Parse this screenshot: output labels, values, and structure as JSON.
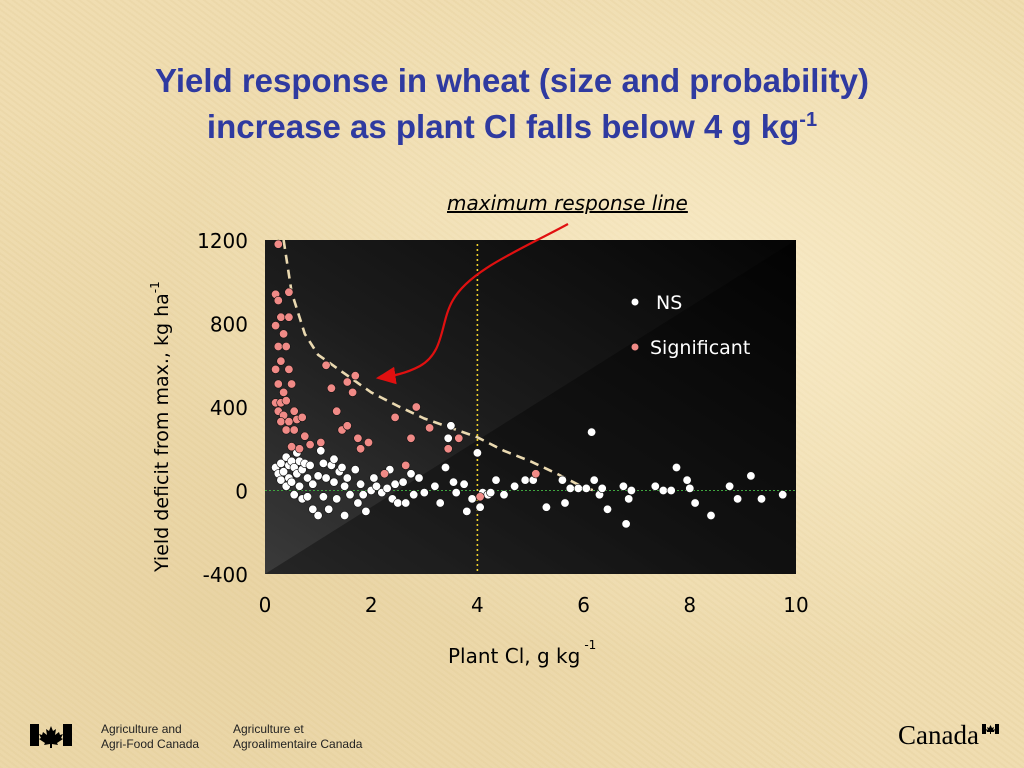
{
  "slide": {
    "title_line1": "Yield response in wheat (size and probability)",
    "title_line2": "increase as plant Cl falls below 4 g kg",
    "title_sup": "-1"
  },
  "footer": {
    "dept_en_line1": "Agriculture and",
    "dept_en_line2": "Agri-Food Canada",
    "dept_fr_line1": "Agriculture et",
    "dept_fr_line2": "Agroalimentaire Canada",
    "wordmark": "Canada"
  },
  "colors": {
    "title": "#2f3aa0",
    "plot_bg": "#1a1a1a",
    "ns_points": "#ffffff",
    "significant_points": "#f08a86",
    "threshold_line": "#f2d22a",
    "zero_line": "#3fa63f",
    "response_curve": "#ead9b0",
    "arrow": "#e01010"
  },
  "chart_data": {
    "type": "scatter",
    "xlabel": "Plant Cl, g kg",
    "xlabel_sup": "-1",
    "ylabel": "Yield deficit from max., kg ha",
    "ylabel_sup": "-1",
    "xlim": [
      0,
      10
    ],
    "ylim": [
      -400,
      1200
    ],
    "xticks": [
      "0",
      "2",
      "4",
      "6",
      "8",
      "10"
    ],
    "yticks": [
      "1200",
      "800",
      "400",
      "0",
      "-400"
    ],
    "ytick_values": [
      1200,
      800,
      400,
      0,
      -400
    ],
    "legend_position": "top-right",
    "legend": [
      {
        "label": "NS",
        "series": "ns"
      },
      {
        "label": "Significant",
        "series": "significant"
      }
    ],
    "annotation": "maximum response line",
    "threshold_x": 4,
    "zero_line_y": 0,
    "max_response_line": [
      [
        0.35,
        1200
      ],
      [
        0.5,
        950
      ],
      [
        0.75,
        750
      ],
      [
        1.0,
        650
      ],
      [
        1.5,
        560
      ],
      [
        2.0,
        470
      ],
      [
        2.5,
        405
      ],
      [
        3.0,
        345
      ],
      [
        3.5,
        300
      ],
      [
        4.0,
        255
      ],
      [
        4.5,
        190
      ],
      [
        5.0,
        140
      ],
      [
        5.5,
        80
      ],
      [
        6.0,
        15
      ],
      [
        6.2,
        0
      ]
    ],
    "series": [
      {
        "name": "NS",
        "id": "ns",
        "points": [
          [
            0.2,
            110
          ],
          [
            0.25,
            80
          ],
          [
            0.3,
            50
          ],
          [
            0.3,
            130
          ],
          [
            0.35,
            90
          ],
          [
            0.4,
            160
          ],
          [
            0.4,
            20
          ],
          [
            0.45,
            120
          ],
          [
            0.45,
            60
          ],
          [
            0.5,
            140
          ],
          [
            0.5,
            40
          ],
          [
            0.55,
            110
          ],
          [
            0.55,
            -20
          ],
          [
            0.6,
            180
          ],
          [
            0.6,
            80
          ],
          [
            0.65,
            140
          ],
          [
            0.65,
            20
          ],
          [
            0.7,
            100
          ],
          [
            0.7,
            -40
          ],
          [
            0.75,
            130
          ],
          [
            0.8,
            60
          ],
          [
            0.8,
            -30
          ],
          [
            0.85,
            120
          ],
          [
            0.9,
            30
          ],
          [
            0.9,
            -90
          ],
          [
            1.0,
            70
          ],
          [
            1.0,
            -120
          ],
          [
            1.05,
            190
          ],
          [
            1.1,
            130
          ],
          [
            1.1,
            -30
          ],
          [
            1.15,
            60
          ],
          [
            1.2,
            -90
          ],
          [
            1.25,
            120
          ],
          [
            1.3,
            150
          ],
          [
            1.3,
            40
          ],
          [
            1.35,
            -40
          ],
          [
            1.4,
            90
          ],
          [
            1.45,
            110
          ],
          [
            1.5,
            20
          ],
          [
            1.5,
            -120
          ],
          [
            1.55,
            60
          ],
          [
            1.6,
            -20
          ],
          [
            1.7,
            100
          ],
          [
            1.75,
            -60
          ],
          [
            1.8,
            30
          ],
          [
            1.85,
            -20
          ],
          [
            1.9,
            -100
          ],
          [
            2.0,
            0
          ],
          [
            2.05,
            60
          ],
          [
            2.1,
            20
          ],
          [
            2.2,
            -10
          ],
          [
            2.3,
            10
          ],
          [
            2.35,
            100
          ],
          [
            2.4,
            -40
          ],
          [
            2.45,
            30
          ],
          [
            2.5,
            -60
          ],
          [
            2.6,
            40
          ],
          [
            2.65,
            -60
          ],
          [
            2.75,
            80
          ],
          [
            2.8,
            -20
          ],
          [
            2.9,
            60
          ],
          [
            3.0,
            -10
          ],
          [
            3.2,
            20
          ],
          [
            3.3,
            -60
          ],
          [
            3.4,
            110
          ],
          [
            3.45,
            250
          ],
          [
            3.5,
            310
          ],
          [
            3.55,
            40
          ],
          [
            3.6,
            -10
          ],
          [
            3.75,
            30
          ],
          [
            3.8,
            -100
          ],
          [
            3.9,
            -40
          ],
          [
            4.0,
            180
          ],
          [
            4.05,
            -80
          ],
          [
            4.1,
            -10
          ],
          [
            4.2,
            -20
          ],
          [
            4.25,
            -10
          ],
          [
            4.35,
            50
          ],
          [
            4.5,
            -20
          ],
          [
            4.7,
            20
          ],
          [
            4.9,
            50
          ],
          [
            5.05,
            50
          ],
          [
            5.3,
            -80
          ],
          [
            5.6,
            50
          ],
          [
            5.65,
            -60
          ],
          [
            5.75,
            10
          ],
          [
            5.9,
            10
          ],
          [
            6.05,
            10
          ],
          [
            6.15,
            280
          ],
          [
            6.2,
            50
          ],
          [
            6.3,
            -20
          ],
          [
            6.35,
            10
          ],
          [
            6.45,
            -90
          ],
          [
            6.75,
            20
          ],
          [
            6.8,
            -160
          ],
          [
            6.85,
            -40
          ],
          [
            6.9,
            0
          ],
          [
            7.35,
            20
          ],
          [
            7.5,
            0
          ],
          [
            7.65,
            0
          ],
          [
            7.75,
            110
          ],
          [
            7.95,
            50
          ],
          [
            8.0,
            10
          ],
          [
            8.1,
            -60
          ],
          [
            8.4,
            -120
          ],
          [
            8.75,
            20
          ],
          [
            8.9,
            -40
          ],
          [
            9.15,
            70
          ],
          [
            9.35,
            -40
          ],
          [
            9.75,
            -20
          ]
        ]
      },
      {
        "name": "Significant",
        "id": "significant",
        "points": [
          [
            0.25,
            1180
          ],
          [
            0.2,
            940
          ],
          [
            0.25,
            910
          ],
          [
            0.45,
            950
          ],
          [
            0.3,
            830
          ],
          [
            0.45,
            830
          ],
          [
            0.2,
            790
          ],
          [
            0.35,
            750
          ],
          [
            0.25,
            690
          ],
          [
            0.4,
            690
          ],
          [
            0.3,
            620
          ],
          [
            0.2,
            580
          ],
          [
            0.45,
            580
          ],
          [
            0.25,
            510
          ],
          [
            0.5,
            510
          ],
          [
            0.35,
            470
          ],
          [
            0.2,
            420
          ],
          [
            0.3,
            420
          ],
          [
            0.4,
            430
          ],
          [
            0.25,
            380
          ],
          [
            0.35,
            360
          ],
          [
            0.55,
            380
          ],
          [
            0.3,
            330
          ],
          [
            0.45,
            330
          ],
          [
            0.6,
            340
          ],
          [
            0.4,
            290
          ],
          [
            0.55,
            290
          ],
          [
            0.7,
            350
          ],
          [
            0.75,
            260
          ],
          [
            0.5,
            210
          ],
          [
            0.65,
            200
          ],
          [
            0.85,
            220
          ],
          [
            1.05,
            230
          ],
          [
            1.15,
            600
          ],
          [
            1.25,
            490
          ],
          [
            1.35,
            380
          ],
          [
            1.45,
            290
          ],
          [
            1.55,
            520
          ],
          [
            1.55,
            310
          ],
          [
            1.7,
            550
          ],
          [
            1.65,
            470
          ],
          [
            1.75,
            250
          ],
          [
            1.8,
            200
          ],
          [
            1.95,
            230
          ],
          [
            2.25,
            80
          ],
          [
            2.45,
            350
          ],
          [
            2.65,
            120
          ],
          [
            2.75,
            250
          ],
          [
            2.85,
            400
          ],
          [
            3.1,
            300
          ],
          [
            3.45,
            200
          ],
          [
            3.65,
            250
          ],
          [
            4.05,
            -30
          ],
          [
            5.1,
            80
          ]
        ]
      }
    ]
  }
}
